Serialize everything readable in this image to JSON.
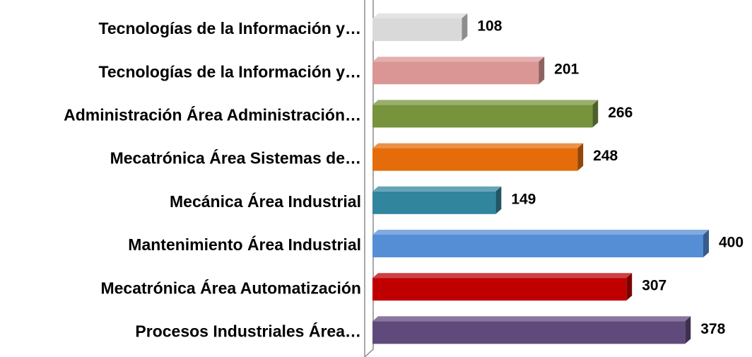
{
  "chart_data": {
    "type": "bar",
    "orientation": "horizontal",
    "categories": [
      "Tecnologías de la Información y…",
      "Tecnologías de la Información y…",
      "Administración Área Administración…",
      "Mecatrónica Área Sistemas de…",
      "Mecánica Área Industrial",
      "Mantenimiento Área Industrial",
      "Mecatrónica Área Automatización",
      "Procesos Industriales Área…"
    ],
    "values": [
      108,
      201,
      266,
      248,
      149,
      400,
      307,
      378
    ],
    "colors": [
      "#d9d9d9",
      "#d99694",
      "#77933c",
      "#e46c0a",
      "#31859c",
      "#558ed5",
      "#c00000",
      "#604a7b"
    ]
  }
}
